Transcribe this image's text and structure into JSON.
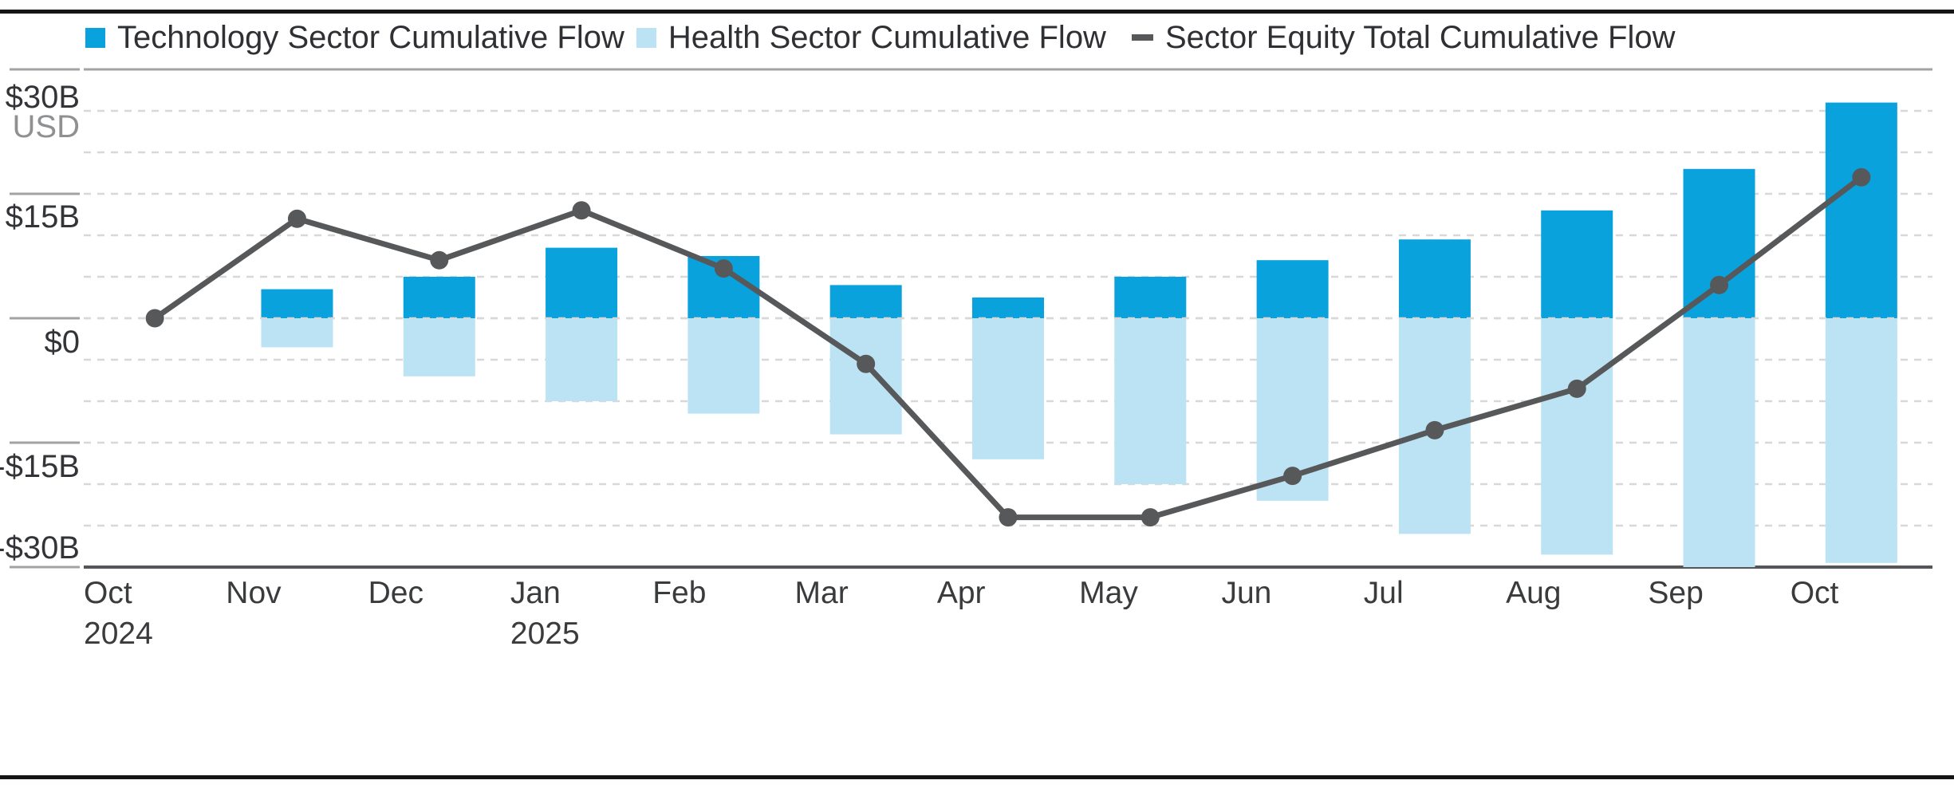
{
  "legend": {
    "items": [
      {
        "label": "Technology Sector Cumulative Flow",
        "color": "#0aa2dc",
        "swatch": "square"
      },
      {
        "label": "Health Sector Cumulative Flow",
        "color": "#bce3f4",
        "swatch": "square"
      },
      {
        "label": "Sector Equity Total Cumulative Flow",
        "color": "#57585a",
        "swatch": "dash"
      }
    ]
  },
  "y_axis": {
    "labels": [
      "$30B",
      "USD",
      "$15B",
      "$0",
      "-$15B",
      "-$30B"
    ],
    "unit": "USD"
  },
  "x_axis": {
    "labels": [
      "Oct",
      "Nov",
      "Dec",
      "Jan",
      "Feb",
      "Mar",
      "Apr",
      "May",
      "Jun",
      "Jul",
      "Aug",
      "Sep",
      "Oct"
    ],
    "year_labels": [
      {
        "index": 0,
        "text": "2024"
      },
      {
        "index": 3,
        "text": "2025"
      }
    ]
  },
  "chart_data": {
    "type": "bar",
    "subtype": "stacked-bars-with-line-overlay",
    "unit": "USD billions",
    "categories": [
      "Oct 2024",
      "Nov 2024",
      "Dec 2024",
      "Jan 2025",
      "Feb 2025",
      "Mar 2025",
      "Apr 2025",
      "May 2025",
      "Jun 2025",
      "Jul 2025",
      "Aug 2025",
      "Sep 2025",
      "Oct 2025"
    ],
    "series": [
      {
        "name": "Technology Sector Cumulative Flow",
        "type": "bar",
        "color": "#0aa2dc",
        "values": [
          0,
          3.5,
          5,
          8.5,
          7.5,
          4,
          2.5,
          5,
          7,
          9.5,
          13,
          18,
          26
        ]
      },
      {
        "name": "Health Sector Cumulative Flow",
        "type": "bar",
        "color": "#bce3f4",
        "values": [
          0,
          -3.5,
          -7,
          -10,
          -11.5,
          -14,
          -17,
          -20,
          -22,
          -26,
          -28.5,
          -30,
          -29.5
        ]
      },
      {
        "name": "Sector Equity Total Cumulative Flow",
        "type": "line",
        "color": "#57585a",
        "values": [
          0,
          12,
          7,
          13,
          6,
          -5.5,
          -24,
          -24,
          -19,
          -13.5,
          -8.5,
          4,
          17
        ]
      }
    ],
    "ylim": [
      -30,
      30
    ],
    "major_tick_interval": 15,
    "gridline_interval": 5,
    "grid": "dashed horizontal",
    "legend_position": "top-left"
  }
}
